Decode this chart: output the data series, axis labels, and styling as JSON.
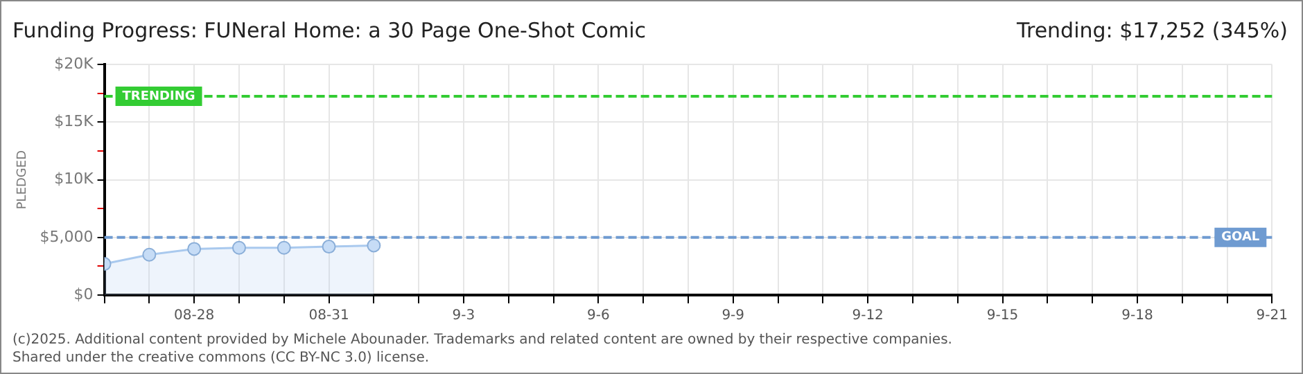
{
  "chart_data": {
    "type": "area",
    "title": "Funding Progress: FUNeral Home: a 30 Page One-Shot Comic",
    "subtitle": "Trending: $17,252 (345%)",
    "ylabel": "PLEDGED",
    "x": [
      "--08-26",
      "--08-27",
      "--08-28",
      "--08-29",
      "--08-30",
      "--08-31",
      "--09-01"
    ],
    "series": [
      {
        "color": "#a9c9ee",
        "values": [
          2700,
          3500,
          4000,
          4100,
          4100,
          4200,
          4300
        ]
      }
    ],
    "xlim": [
      "--08-26",
      "--09-21"
    ],
    "xticks": [
      {
        "value": "--08-26",
        "label": null
      },
      {
        "value": "--08-27",
        "label": null
      },
      {
        "value": "--08-28",
        "label": "08-28"
      },
      {
        "value": "--08-29",
        "label": null
      },
      {
        "value": "--08-30",
        "label": null
      },
      {
        "value": "--08-31",
        "label": "08-31"
      },
      {
        "value": "--09-01",
        "label": null
      },
      {
        "value": "--09-02",
        "label": null
      },
      {
        "value": "--09-03",
        "label": "9-3"
      },
      {
        "value": "--09-04",
        "label": null
      },
      {
        "value": "--09-05",
        "label": null
      },
      {
        "value": "--09-06",
        "label": "9-6"
      },
      {
        "value": "--09-07",
        "label": null
      },
      {
        "value": "--09-08",
        "label": null
      },
      {
        "value": "--09-09",
        "label": "9-9"
      },
      {
        "value": "--09-10",
        "label": null
      },
      {
        "value": "--09-11",
        "label": null
      },
      {
        "value": "--09-12",
        "label": "9-12"
      },
      {
        "value": "--09-13",
        "label": null
      },
      {
        "value": "--09-14",
        "label": null
      },
      {
        "value": "--09-15",
        "label": "9-15"
      },
      {
        "value": "--09-16",
        "label": null
      },
      {
        "value": "--09-17",
        "label": null
      },
      {
        "value": "--09-18",
        "label": "9-18"
      },
      {
        "value": "--09-19",
        "label": null
      },
      {
        "value": "--09-20",
        "label": null
      },
      {
        "value": "--09-21",
        "label": "9-21"
      }
    ],
    "ylim": [
      0,
      20000
    ],
    "yticks": [
      {
        "value": 0,
        "label": "$0"
      },
      {
        "value": 2500,
        "label": null
      },
      {
        "value": 5000,
        "label": "$5,000"
      },
      {
        "value": 7500,
        "label": null
      },
      {
        "value": 10000,
        "label": "$10K"
      },
      {
        "value": 12500,
        "label": null
      },
      {
        "value": 15000,
        "label": "$15K"
      },
      {
        "value": 17500,
        "label": null
      },
      {
        "value": 20000,
        "label": "$20K"
      }
    ],
    "ref_lines": [
      {
        "axis": "y",
        "value": 17252,
        "label": "TRENDING",
        "color": "#33cc33",
        "line_style": "dashed"
      },
      {
        "axis": "y",
        "value": 5000,
        "label": "GOAL",
        "color": "#6f9bd1",
        "line_style": "dashed"
      }
    ],
    "annotations": [
      "(c)2025. Additional content provided by Michele Abounader. Trademarks and related content are owned by their respective companies.",
      "Shared under the creative commons (CC BY-NC 3.0) license."
    ],
    "grid": true,
    "marker": "circle",
    "line_style": "solid",
    "legend": false
  }
}
